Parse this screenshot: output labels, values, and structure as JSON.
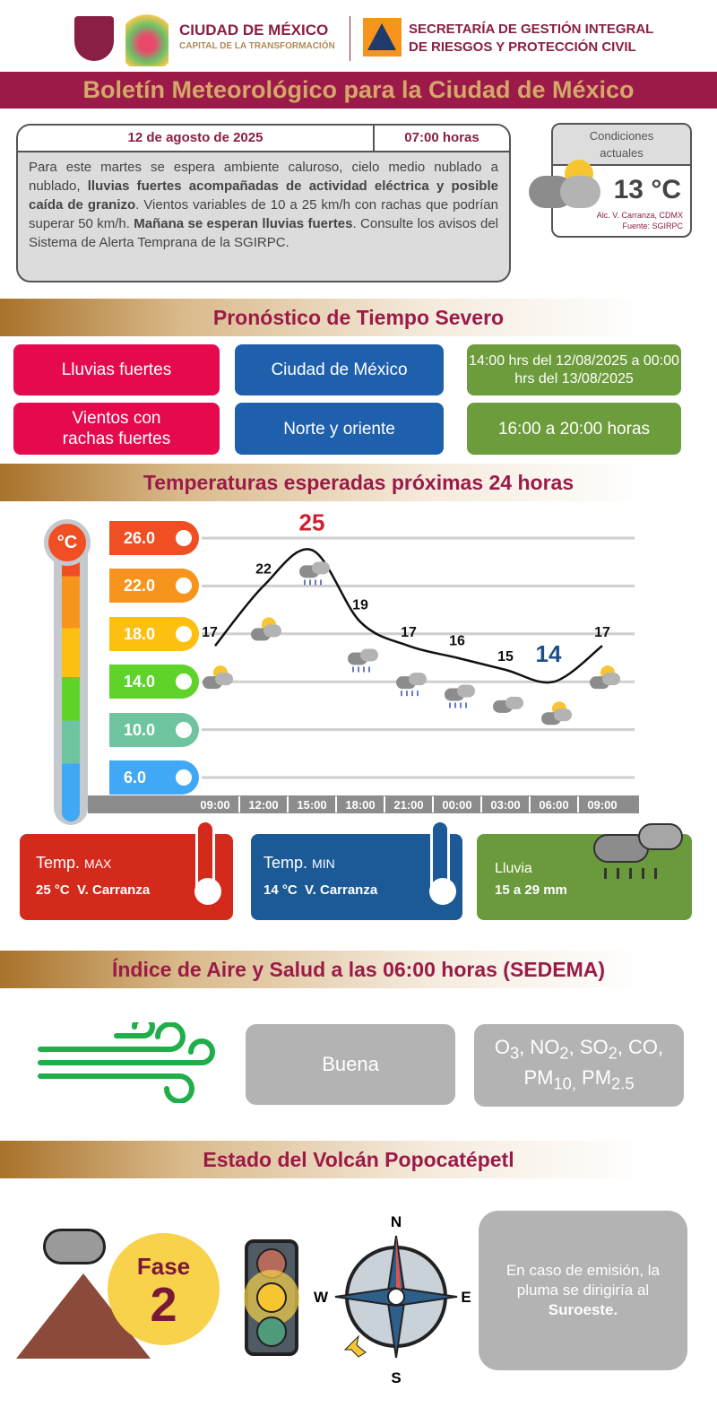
{
  "header": {
    "logo1_line1": "CIUDAD DE MÉXICO",
    "logo1_line2": "CAPITAL DE LA TRANSFORMACIÓN",
    "logo2_line1": "SECRETARÍA DE GESTIÓN INTEGRAL",
    "logo2_line2": "DE RIESGOS Y PROTECCIÓN CIVIL"
  },
  "title": "Boletín Meteorológico para la Ciudad de México",
  "bulletin": {
    "date": "12 de agosto de 2025",
    "time": "07:00 horas",
    "text_parts": [
      "Para este martes se espera ambiente caluroso, cielo medio nublado a nublado, ",
      "lluvias fuertes acompañadas de actividad eléctrica y posible caída de granizo",
      ". Vientos variables de 10 a 25 km/h con rachas que podrían superar 50 km/h. ",
      "Mañana se esperan lluvias fuertes",
      ". Consulte los avisos del Sistema de Alerta Temprana de la SGIRPC."
    ]
  },
  "current": {
    "label": "Condiciones actuales",
    "temp": "13 °C",
    "location": "Alc. V. Carranza, CDMX",
    "source": "Fuente: SGIRPC",
    "icon": "partly-cloudy-icon"
  },
  "severe": {
    "title": "Pronóstico de Tiempo Severo",
    "rows": [
      {
        "phenomenon": "Lluvias fuertes",
        "area": "Ciudad de México",
        "period": "14:00 hrs del 12/08/2025 a 00:00 hrs del 13/08/2025"
      },
      {
        "phenomenon": "Vientos con rachas fuertes",
        "area": "Norte y oriente",
        "period": "16:00 a 20:00 horas"
      }
    ],
    "colors": {
      "phenomenon": "#e5094e",
      "area": "#1f60ad",
      "period": "#6c9c3b"
    }
  },
  "temps": {
    "title": "Temperaturas esperadas próximas 24 horas",
    "unit": "°C"
  },
  "chart_data": {
    "type": "line",
    "title": "Temperaturas esperadas próximas 24 horas",
    "categories": [
      "09:00",
      "12:00",
      "15:00",
      "18:00",
      "21:00",
      "00:00",
      "03:00",
      "06:00",
      "09:00"
    ],
    "values": [
      17,
      22,
      25,
      19,
      17,
      16,
      15,
      14,
      17
    ],
    "icons": [
      "partly-cloudy",
      "partly-cloudy",
      "thunderstorm",
      "thunderstorm",
      "rain",
      "rain",
      "cloudy",
      "partly-cloudy",
      "partly-cloudy"
    ],
    "yticks": [
      "26.0",
      "22.0",
      "18.0",
      "14.0",
      "10.0",
      "6.0"
    ],
    "ytick_colors": [
      "#f04e23",
      "#f7941d",
      "#fdc010",
      "#5fd32a",
      "#6fc4a0",
      "#40a8f4"
    ],
    "ylim": [
      6,
      26
    ],
    "max_color": "#d0202e",
    "min_color": "#1f4e8c",
    "grid": true
  },
  "cards": {
    "max": {
      "label": "Temp.",
      "sub": "MAX",
      "value": "25 °C  V. Carranza"
    },
    "min": {
      "label": "Temp.",
      "sub": "MIN",
      "value": "14 °C  V. Carranza"
    },
    "rain": {
      "label": "Lluvia",
      "value": "15 a 29 mm"
    }
  },
  "air": {
    "title": "Índice de Aire y Salud a las 06:00 horas (SEDEMA)",
    "quality": "Buena",
    "pollutants_line1": "O<sub>3</sub>, NO<sub>2</sub>, SO<sub>2</sub>, CO,",
    "pollutants_line2": "PM<sub>10,</sub> PM<sub>2.5</sub>"
  },
  "volcano": {
    "title": "Estado del Volcán Popocatépetl",
    "phase_label": "Fase",
    "phase_num": "2",
    "traffic_light": "yellow",
    "compass": {
      "n": "N",
      "s": "S",
      "e": "E",
      "w": "W"
    },
    "plume_text": "En caso de emisión, la pluma se dirigiría al ",
    "plume_dir": "Suroeste."
  }
}
